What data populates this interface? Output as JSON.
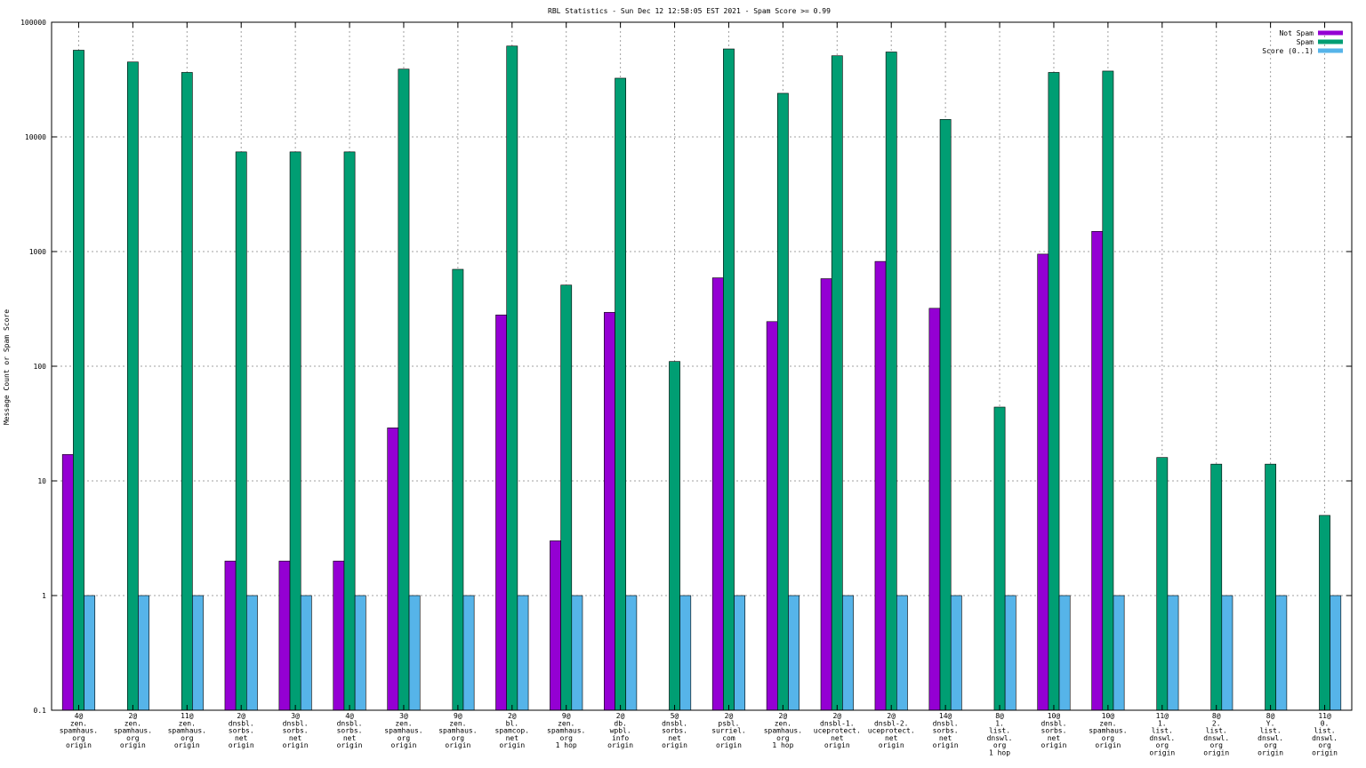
{
  "chart_data": {
    "type": "bar",
    "title": "RBL Statistics - Sun Dec 12 12:58:05 EST 2021 - Spam Score >= 0.99",
    "xlabel": "",
    "ylabel": "Message Count or Spam Score",
    "yscale": "log",
    "ylim": [
      0.1,
      100000
    ],
    "yticks": [
      "0.1",
      "1",
      "10",
      "100",
      "1000",
      "10000",
      "100000"
    ],
    "grid": true,
    "legend_position": "top-right",
    "categories": [
      [
        "4@",
        "zen.",
        "spamhaus.",
        "org",
        "origin"
      ],
      [
        "2@",
        "zen.",
        "spamhaus.",
        "org",
        "origin"
      ],
      [
        "11@",
        "zen.",
        "spamhaus.",
        "org",
        "origin"
      ],
      [
        "2@",
        "dnsbl.",
        "sorbs.",
        "net",
        "origin"
      ],
      [
        "3@",
        "dnsbl.",
        "sorbs.",
        "net",
        "origin"
      ],
      [
        "4@",
        "dnsbl.",
        "sorbs.",
        "net",
        "origin"
      ],
      [
        "3@",
        "zen.",
        "spamhaus.",
        "org",
        "origin"
      ],
      [
        "9@",
        "zen.",
        "spamhaus.",
        "org",
        "origin"
      ],
      [
        "2@",
        "bl.",
        "spamcop.",
        "net",
        "origin"
      ],
      [
        "9@",
        "zen.",
        "spamhaus.",
        "org",
        "1 hop"
      ],
      [
        "2@",
        "db.",
        "wpbl.",
        "info",
        "origin"
      ],
      [
        "5@",
        "dnsbl.",
        "sorbs.",
        "net",
        "origin"
      ],
      [
        "2@",
        "psbl.",
        "surriel.",
        "com",
        "origin"
      ],
      [
        "2@",
        "zen.",
        "spamhaus.",
        "org",
        "1 hop"
      ],
      [
        "2@",
        "dnsbl-1.",
        "uceprotect.",
        "net",
        "origin"
      ],
      [
        "2@",
        "dnsbl-2.",
        "uceprotect.",
        "net",
        "origin"
      ],
      [
        "14@",
        "dnsbl.",
        "sorbs.",
        "net",
        "origin"
      ],
      [
        "8@",
        "1.",
        "list.",
        "dnswl.",
        "org",
        "1 hop"
      ],
      [
        "10@",
        "dnsbl.",
        "sorbs.",
        "net",
        "origin"
      ],
      [
        "10@",
        "zen.",
        "spamhaus.",
        "org",
        "origin"
      ],
      [
        "11@",
        "1.",
        "list.",
        "dnswl.",
        "org",
        "origin"
      ],
      [
        "8@",
        "2.",
        "list.",
        "dnswl.",
        "org",
        "origin"
      ],
      [
        "8@",
        "Y.",
        "list.",
        "dnswl.",
        "org",
        "origin"
      ],
      [
        "11@",
        "0.",
        "list.",
        "dnswl.",
        "org",
        "origin"
      ]
    ],
    "series": [
      {
        "name": "Not Spam",
        "color": "#9400d3",
        "values": [
          17,
          null,
          null,
          2,
          2,
          2,
          29,
          null,
          280,
          3,
          295,
          null,
          590,
          245,
          580,
          820,
          320,
          null,
          950,
          1500,
          null,
          null,
          null,
          null
        ]
      },
      {
        "name": "Spam",
        "color": "#009e73",
        "values": [
          57000,
          45000,
          36500,
          7400,
          7400,
          7400,
          39000,
          700,
          62000,
          510,
          32500,
          110,
          58500,
          24000,
          51000,
          55000,
          14200,
          44,
          36500,
          37500,
          16,
          14,
          14,
          5
        ]
      },
      {
        "name": "Score (0..1)",
        "color": "#56b4e9",
        "values": [
          1,
          1,
          1,
          1,
          1,
          1,
          1,
          1,
          1,
          1,
          1,
          1,
          1,
          1,
          1,
          1,
          1,
          1,
          1,
          1,
          1,
          1,
          1,
          1
        ]
      }
    ]
  }
}
